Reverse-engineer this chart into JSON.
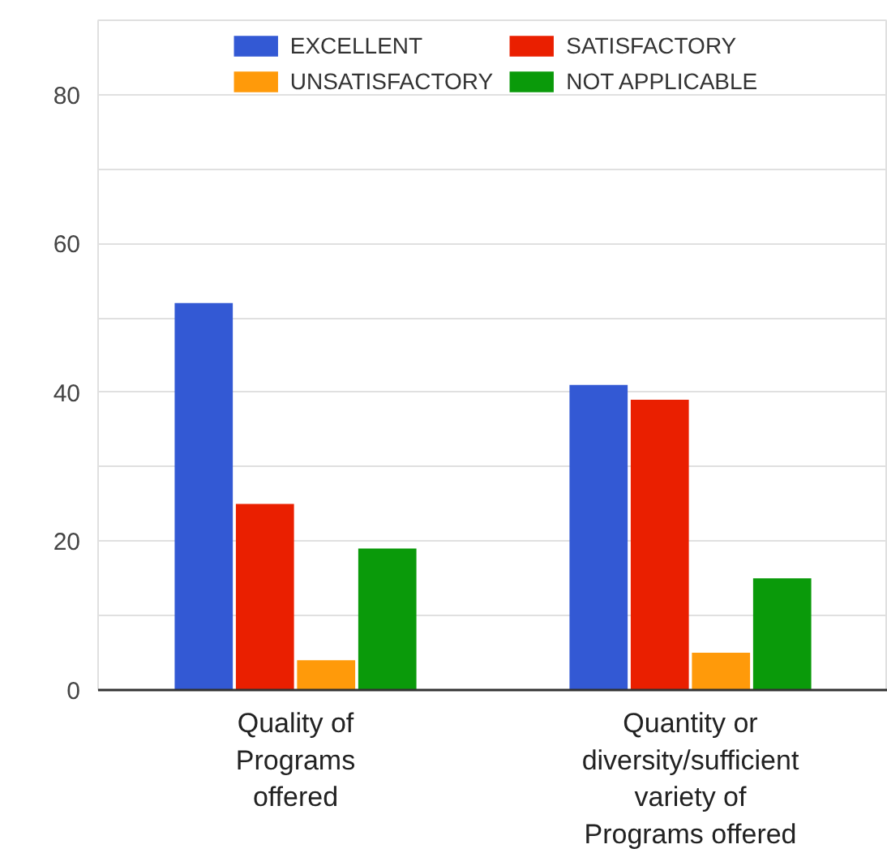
{
  "chart_data": {
    "type": "bar",
    "categories": [
      "Quality of\nPrograms\noffered",
      "Quantity or\ndiversity/sufficient\nvariety of\nPrograms offered"
    ],
    "series": [
      {
        "name": "EXCELLENT",
        "color": "#3359d4",
        "values": [
          52,
          41
        ]
      },
      {
        "name": "SATISFACTORY",
        "color": "#ea1f00",
        "values": [
          25,
          39
        ]
      },
      {
        "name": "UNSATISFACTORY",
        "color": "#ff9a0a",
        "values": [
          4,
          5
        ]
      },
      {
        "name": "NOT APPLICABLE",
        "color": "#0a9a0a",
        "values": [
          19,
          15
        ]
      }
    ],
    "ylim": [
      0,
      90
    ],
    "yticks": [
      0,
      {
        "value": 10,
        "label": null
      },
      20,
      {
        "value": 30,
        "label": null
      },
      40,
      {
        "value": 50,
        "label": null
      },
      60,
      {
        "value": 70,
        "label": null
      },
      80,
      {
        "value": 90,
        "label": null
      }
    ],
    "grid": "y",
    "legend": "top"
  }
}
